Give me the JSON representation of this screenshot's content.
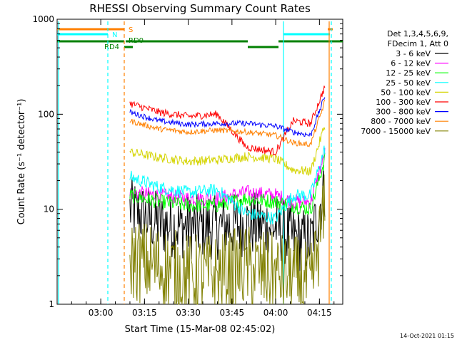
{
  "chart_data": {
    "type": "line",
    "title": "RHESSI Observing Summary Count Rates",
    "xlabel": "Start Time (15-Mar-08 02:45:02)",
    "ylabel": "Count Rate (s⁻¹ detector⁻¹)",
    "y_scale": "log",
    "ylim": [
      1,
      1000
    ],
    "xlim": [
      "02:45:02",
      "04:23:00"
    ],
    "x_ticks": [
      "03:00",
      "03:15",
      "03:30",
      "03:45",
      "04:00",
      "04:15"
    ],
    "y_ticks": [
      "1",
      "10",
      "100",
      "1000"
    ],
    "legend_header": [
      "Det 1,3,4,5,6,9,",
      "FDecim 1, Att 0"
    ],
    "legend_placement": "right",
    "series": [
      {
        "name": "3 - 6 keV",
        "color": "#000000",
        "x": [
          "03:10",
          "03:20",
          "03:30",
          "03:40",
          "03:50",
          "04:00",
          "04:06",
          "04:12",
          "04:17"
        ],
        "values": [
          10,
          7,
          6.5,
          6.5,
          7,
          6.5,
          5,
          4.5,
          18
        ]
      },
      {
        "name": "6 - 12 keV",
        "color": "#ff00ff",
        "x": [
          "03:10",
          "03:20",
          "03:30",
          "03:40",
          "03:50",
          "04:00",
          "04:06",
          "04:12",
          "04:17"
        ],
        "values": [
          15,
          14,
          13,
          13,
          15,
          14,
          12,
          12,
          40
        ]
      },
      {
        "name": "12 - 25 keV",
        "color": "#00ff00",
        "x": [
          "03:10",
          "03:20",
          "03:30",
          "03:40",
          "03:50",
          "04:00",
          "04:06",
          "04:12",
          "04:17"
        ],
        "values": [
          14,
          12,
          11,
          11,
          13,
          12,
          11,
          10,
          35
        ]
      },
      {
        "name": "25 - 50 keV",
        "color": "#00ffff",
        "x": [
          "03:10",
          "03:20",
          "03:30",
          "03:40",
          "03:50",
          "04:00",
          "04:06",
          "04:12",
          "04:17"
        ],
        "values": [
          22,
          17,
          15,
          16,
          9,
          8,
          14,
          14,
          45
        ]
      },
      {
        "name": "50 - 100 keV",
        "color": "#d4d400",
        "x": [
          "03:10",
          "03:20",
          "03:30",
          "03:40",
          "03:50",
          "04:00",
          "04:06",
          "04:12",
          "04:17"
        ],
        "values": [
          40,
          35,
          32,
          33,
          36,
          34,
          26,
          25,
          80
        ]
      },
      {
        "name": "100 - 300 keV",
        "color": "#ff0000",
        "x": [
          "03:10",
          "03:20",
          "03:30",
          "03:40",
          "03:50",
          "04:00",
          "04:06",
          "04:12",
          "04:17"
        ],
        "values": [
          130,
          105,
          95,
          100,
          45,
          40,
          85,
          80,
          200
        ]
      },
      {
        "name": "300 - 800 keV",
        "color": "#0000ff",
        "x": [
          "03:10",
          "03:20",
          "03:30",
          "03:40",
          "03:50",
          "04:00",
          "04:06",
          "04:12",
          "04:17"
        ],
        "values": [
          105,
          85,
          78,
          80,
          80,
          75,
          65,
          60,
          160
        ]
      },
      {
        "name": "800 - 7000 keV",
        "color": "#ff8000",
        "x": [
          "03:10",
          "03:20",
          "03:30",
          "03:40",
          "03:50",
          "04:00",
          "04:06",
          "04:12",
          "04:17"
        ],
        "values": [
          85,
          70,
          65,
          68,
          65,
          60,
          50,
          48,
          140
        ]
      },
      {
        "name": "7000 - 15000 keV",
        "color": "#808000",
        "x": [
          "03:10",
          "03:20",
          "03:30",
          "03:40",
          "03:50",
          "04:00",
          "04:06",
          "04:12",
          "04:17"
        ],
        "values": [
          3,
          2.5,
          2,
          2,
          2.5,
          2,
          2,
          1.5,
          10
        ]
      }
    ],
    "state_bars": [
      {
        "label": "S",
        "color": "#ff8000"
      },
      {
        "label": "N",
        "color": "#00ffff"
      },
      {
        "label": "RD0",
        "color": "#008000"
      },
      {
        "label": "RD4",
        "color": "#008000"
      }
    ],
    "timestamp": "14-Oct-2021 01:15"
  }
}
